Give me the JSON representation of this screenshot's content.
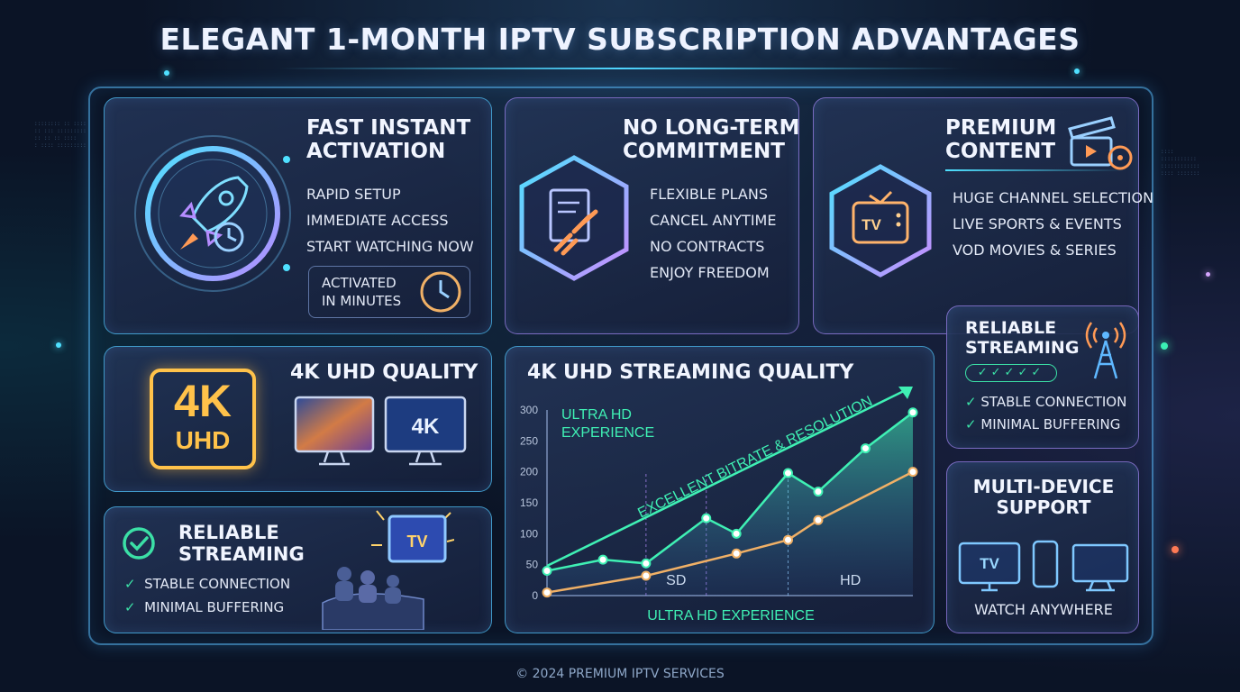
{
  "title": "ELEGANT 1-MONTH IPTV SUBSCRIPTION ADVANTAGES",
  "activation": {
    "title_line1": "FAST INSTANT",
    "title_line2": "ACTIVATION",
    "items": [
      "RAPID SETUP",
      "IMMEDIATE ACCESS",
      "START WATCHING NOW"
    ],
    "badge_line1": "ACTIVATED",
    "badge_line2": "IN MINUTES"
  },
  "commitment": {
    "title_line1": "NO LONG-TERM",
    "title_line2": "COMMITMENT",
    "items": [
      "FLEXIBLE PLANS",
      "CANCEL ANYTIME",
      "NO CONTRACTS",
      "ENJOY FREEDOM"
    ]
  },
  "premium": {
    "title_line1": "PREMIUM",
    "title_line2": "CONTENT",
    "tv_label": "TV",
    "items": [
      "HUGE CHANNEL SELECTION",
      "LIVE SPORTS & EVENTS",
      "VOD MOVIES & SERIES"
    ]
  },
  "uhd": {
    "title": "4K UHD QUALITY",
    "badge_top": "4K",
    "badge_bottom": "UHD",
    "monitor_label": "4K"
  },
  "reliable_left": {
    "title_line1": "RELIABLE",
    "title_line2": "STREAMING",
    "items": [
      "STABLE CONNECTION",
      "MINIMAL BUFFERING"
    ],
    "tv_label": "TV"
  },
  "reliable_right": {
    "title_line1": "RELIABLE",
    "title_line2": "STREAMING",
    "items": [
      "STABLE CONNECTION",
      "MINIMAL BUFFERING"
    ]
  },
  "multidevice": {
    "title_line1": "MULTI-DEVICE",
    "title_line2": "SUPPORT",
    "tv_label": "TV",
    "caption": "WATCH ANYWHERE"
  },
  "chart_data": {
    "type": "line",
    "title": "4K UHD STREAMING QUALITY",
    "inset_line1": "ULTRA HD",
    "inset_line2": "EXPERIENCE",
    "arrow_label": "EXCELLENT BITRATE & RESOLUTION",
    "xlabel": "ULTRA HD EXPERIENCE",
    "region_labels": [
      "SD",
      "HD"
    ],
    "ylim": [
      0,
      300
    ],
    "yticks": [
      0,
      50,
      100,
      150,
      200,
      250,
      300
    ],
    "x": [
      0,
      1,
      2,
      3,
      4,
      5,
      6,
      7,
      8,
      9
    ],
    "series": [
      {
        "values": [
          40,
          58,
          52,
          125,
          100,
          198,
          168,
          238,
          296
        ],
        "x": [
          0,
          1.3,
          2.3,
          3.7,
          4.4,
          5.6,
          6.3,
          7.4,
          8.5
        ],
        "color": "#3ff0b4"
      },
      {
        "values": [
          5,
          32,
          68,
          90,
          122,
          200
        ],
        "x": [
          0,
          2.3,
          4.4,
          5.6,
          6.3,
          8.5
        ],
        "color": "#f0b066"
      }
    ]
  },
  "footer": "© 2024 PREMIUM IPTV SERVICES"
}
